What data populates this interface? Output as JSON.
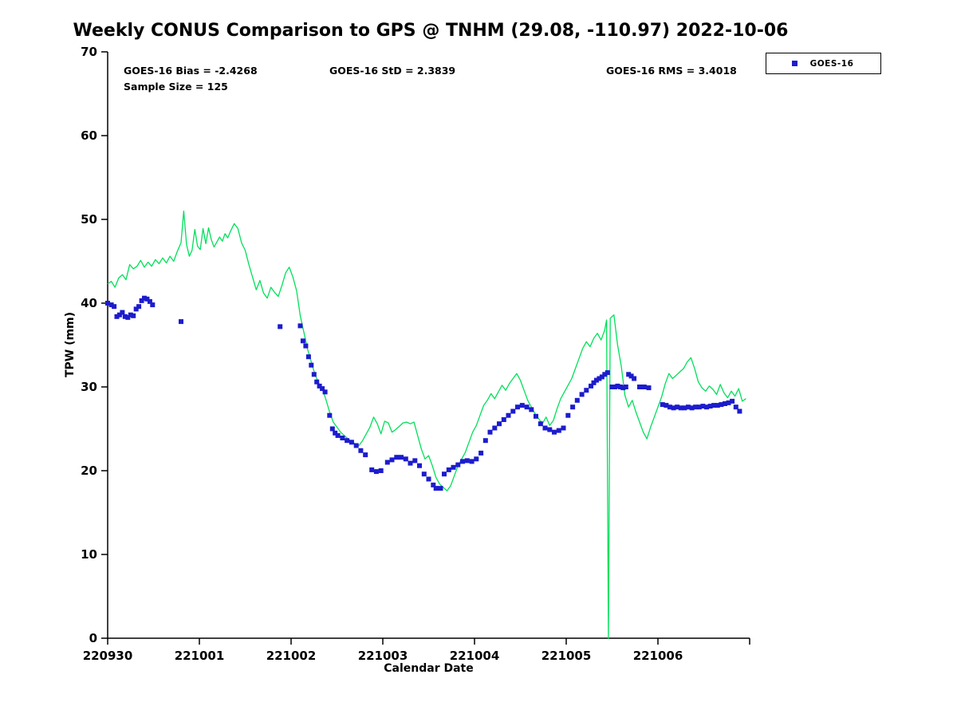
{
  "title": "Weekly CONUS Comparison to GPS @ TNHM (29.08, -110.97) 2022-10-06",
  "stats": {
    "bias": "GOES-16 Bias = -2.4268",
    "std": "GOES-16 StD = 2.3839",
    "rms": "GOES-16 RMS = 3.4018",
    "sample_size": "Sample Size = 125"
  },
  "legend": {
    "label": "GOES-16"
  },
  "axes": {
    "x_label": "Calendar Date",
    "y_label": "TPW (mm)"
  },
  "colors": {
    "gps_line": "#00e05a",
    "goes16_marker": "#1c1ccd",
    "axis": "#000000"
  },
  "chart_data": {
    "type": "line",
    "title": "Weekly CONUS Comparison to GPS @ TNHM (29.08, -110.97) 2022-10-06",
    "xlabel": "Calendar Date",
    "ylabel": "TPW (mm)",
    "ylim": [
      0,
      70
    ],
    "xlim_days": [
      0,
      7
    ],
    "grid": false,
    "legend_position": "outside-top-right",
    "x_unit": "days since 220930",
    "x_tick_labels": [
      "220930",
      "221001",
      "221002",
      "221003",
      "221004",
      "221005",
      "221006"
    ],
    "x_tick_days": [
      0,
      1,
      2,
      3,
      4,
      5,
      6
    ],
    "y_ticks": [
      0,
      10,
      20,
      30,
      40,
      50,
      60,
      70
    ],
    "series": [
      {
        "name": "GPS",
        "style": "line",
        "color": "#00e05a",
        "points": [
          [
            0.0,
            42.3
          ],
          [
            0.04,
            42.6
          ],
          [
            0.08,
            41.9
          ],
          [
            0.12,
            43.0
          ],
          [
            0.16,
            43.4
          ],
          [
            0.2,
            42.8
          ],
          [
            0.24,
            44.6
          ],
          [
            0.28,
            44.1
          ],
          [
            0.32,
            44.4
          ],
          [
            0.36,
            45.1
          ],
          [
            0.4,
            44.3
          ],
          [
            0.44,
            44.9
          ],
          [
            0.48,
            44.4
          ],
          [
            0.52,
            45.2
          ],
          [
            0.56,
            44.7
          ],
          [
            0.6,
            45.4
          ],
          [
            0.64,
            44.8
          ],
          [
            0.68,
            45.6
          ],
          [
            0.72,
            45.0
          ],
          [
            0.76,
            46.2
          ],
          [
            0.8,
            47.2
          ],
          [
            0.83,
            51.0
          ],
          [
            0.86,
            47.0
          ],
          [
            0.89,
            45.6
          ],
          [
            0.92,
            46.3
          ],
          [
            0.95,
            48.8
          ],
          [
            0.98,
            46.8
          ],
          [
            1.01,
            46.4
          ],
          [
            1.04,
            48.9
          ],
          [
            1.07,
            47.1
          ],
          [
            1.1,
            49.0
          ],
          [
            1.13,
            47.6
          ],
          [
            1.16,
            46.7
          ],
          [
            1.19,
            47.3
          ],
          [
            1.22,
            47.9
          ],
          [
            1.25,
            47.4
          ],
          [
            1.28,
            48.3
          ],
          [
            1.31,
            47.8
          ],
          [
            1.34,
            48.6
          ],
          [
            1.38,
            49.5
          ],
          [
            1.42,
            48.9
          ],
          [
            1.46,
            47.2
          ],
          [
            1.5,
            46.3
          ],
          [
            1.54,
            44.6
          ],
          [
            1.58,
            43.1
          ],
          [
            1.62,
            41.6
          ],
          [
            1.66,
            42.7
          ],
          [
            1.7,
            41.2
          ],
          [
            1.74,
            40.6
          ],
          [
            1.78,
            41.9
          ],
          [
            1.82,
            41.3
          ],
          [
            1.86,
            40.8
          ],
          [
            1.9,
            42.1
          ],
          [
            1.94,
            43.6
          ],
          [
            1.98,
            44.3
          ],
          [
            2.02,
            43.1
          ],
          [
            2.06,
            41.5
          ],
          [
            2.1,
            38.5
          ],
          [
            2.14,
            36.5
          ],
          [
            2.18,
            34.5
          ],
          [
            2.22,
            33.0
          ],
          [
            2.26,
            31.5
          ],
          [
            2.3,
            30.5
          ],
          [
            2.34,
            29.8
          ],
          [
            2.38,
            28.5
          ],
          [
            2.42,
            27.0
          ],
          [
            2.46,
            25.8
          ],
          [
            2.5,
            25.2
          ],
          [
            2.54,
            24.6
          ],
          [
            2.58,
            24.2
          ],
          [
            2.62,
            23.8
          ],
          [
            2.66,
            23.5
          ],
          [
            2.7,
            23.2
          ],
          [
            2.74,
            23.0
          ],
          [
            2.78,
            23.6
          ],
          [
            2.82,
            24.4
          ],
          [
            2.86,
            25.2
          ],
          [
            2.9,
            26.4
          ],
          [
            2.94,
            25.6
          ],
          [
            2.98,
            24.4
          ],
          [
            3.02,
            25.9
          ],
          [
            3.06,
            25.7
          ],
          [
            3.1,
            24.6
          ],
          [
            3.14,
            24.9
          ],
          [
            3.18,
            25.3
          ],
          [
            3.22,
            25.7
          ],
          [
            3.26,
            25.8
          ],
          [
            3.3,
            25.6
          ],
          [
            3.34,
            25.8
          ],
          [
            3.38,
            24.2
          ],
          [
            3.42,
            22.6
          ],
          [
            3.46,
            21.4
          ],
          [
            3.5,
            21.8
          ],
          [
            3.54,
            20.6
          ],
          [
            3.58,
            19.2
          ],
          [
            3.62,
            18.4
          ],
          [
            3.66,
            18.0
          ],
          [
            3.7,
            17.6
          ],
          [
            3.74,
            18.2
          ],
          [
            3.78,
            19.4
          ],
          [
            3.82,
            20.6
          ],
          [
            3.86,
            21.4
          ],
          [
            3.9,
            22.2
          ],
          [
            3.94,
            23.4
          ],
          [
            3.98,
            24.6
          ],
          [
            4.02,
            25.4
          ],
          [
            4.06,
            26.6
          ],
          [
            4.1,
            27.8
          ],
          [
            4.14,
            28.4
          ],
          [
            4.18,
            29.2
          ],
          [
            4.22,
            28.6
          ],
          [
            4.26,
            29.4
          ],
          [
            4.3,
            30.2
          ],
          [
            4.34,
            29.6
          ],
          [
            4.38,
            30.4
          ],
          [
            4.42,
            31.0
          ],
          [
            4.46,
            31.6
          ],
          [
            4.5,
            30.8
          ],
          [
            4.54,
            29.6
          ],
          [
            4.58,
            28.4
          ],
          [
            4.62,
            27.6
          ],
          [
            4.66,
            26.8
          ],
          [
            4.7,
            26.2
          ],
          [
            4.74,
            25.6
          ],
          [
            4.78,
            26.4
          ],
          [
            4.82,
            25.4
          ],
          [
            4.86,
            26.0
          ],
          [
            4.9,
            27.4
          ],
          [
            4.94,
            28.6
          ],
          [
            4.98,
            29.4
          ],
          [
            5.02,
            30.2
          ],
          [
            5.06,
            31.0
          ],
          [
            5.1,
            32.2
          ],
          [
            5.14,
            33.4
          ],
          [
            5.18,
            34.6
          ],
          [
            5.22,
            35.4
          ],
          [
            5.26,
            34.8
          ],
          [
            5.3,
            35.8
          ],
          [
            5.34,
            36.4
          ],
          [
            5.38,
            35.6
          ],
          [
            5.42,
            36.8
          ],
          [
            5.44,
            38.0
          ],
          [
            5.46,
            0.0
          ],
          [
            5.48,
            38.2
          ],
          [
            5.52,
            38.6
          ],
          [
            5.56,
            35.0
          ],
          [
            5.6,
            32.5
          ],
          [
            5.64,
            29.0
          ],
          [
            5.68,
            27.6
          ],
          [
            5.72,
            28.4
          ],
          [
            5.76,
            27.0
          ],
          [
            5.8,
            25.8
          ],
          [
            5.84,
            24.6
          ],
          [
            5.88,
            23.8
          ],
          [
            5.92,
            25.2
          ],
          [
            5.96,
            26.4
          ],
          [
            6.0,
            27.6
          ],
          [
            6.04,
            28.8
          ],
          [
            6.08,
            30.4
          ],
          [
            6.12,
            31.6
          ],
          [
            6.16,
            31.0
          ],
          [
            6.2,
            31.4
          ],
          [
            6.24,
            31.8
          ],
          [
            6.28,
            32.2
          ],
          [
            6.32,
            33.0
          ],
          [
            6.36,
            33.5
          ],
          [
            6.4,
            32.2
          ],
          [
            6.44,
            30.6
          ],
          [
            6.48,
            29.9
          ],
          [
            6.52,
            29.5
          ],
          [
            6.56,
            30.1
          ],
          [
            6.6,
            29.7
          ],
          [
            6.64,
            29.1
          ],
          [
            6.68,
            30.3
          ],
          [
            6.72,
            29.3
          ],
          [
            6.76,
            28.7
          ],
          [
            6.8,
            29.5
          ],
          [
            6.84,
            28.9
          ],
          [
            6.88,
            29.8
          ],
          [
            6.92,
            28.3
          ],
          [
            6.96,
            28.6
          ]
        ]
      },
      {
        "name": "GOES-16",
        "style": "scatter-square",
        "color": "#1c1ccd",
        "points": [
          [
            0.0,
            40.0
          ],
          [
            0.04,
            39.8
          ],
          [
            0.07,
            39.6
          ],
          [
            0.1,
            38.4
          ],
          [
            0.13,
            38.6
          ],
          [
            0.16,
            38.9
          ],
          [
            0.19,
            38.4
          ],
          [
            0.22,
            38.3
          ],
          [
            0.25,
            38.6
          ],
          [
            0.28,
            38.5
          ],
          [
            0.31,
            39.3
          ],
          [
            0.34,
            39.6
          ],
          [
            0.37,
            40.3
          ],
          [
            0.4,
            40.6
          ],
          [
            0.43,
            40.5
          ],
          [
            0.46,
            40.2
          ],
          [
            0.49,
            39.8
          ],
          [
            0.8,
            37.8
          ],
          [
            1.88,
            37.2
          ],
          [
            2.1,
            37.3
          ],
          [
            2.13,
            35.5
          ],
          [
            2.16,
            34.9
          ],
          [
            2.19,
            33.6
          ],
          [
            2.22,
            32.6
          ],
          [
            2.25,
            31.5
          ],
          [
            2.28,
            30.6
          ],
          [
            2.31,
            30.1
          ],
          [
            2.34,
            29.8
          ],
          [
            2.37,
            29.4
          ],
          [
            2.42,
            26.6
          ],
          [
            2.45,
            25.0
          ],
          [
            2.48,
            24.5
          ],
          [
            2.51,
            24.2
          ],
          [
            2.56,
            23.9
          ],
          [
            2.61,
            23.6
          ],
          [
            2.66,
            23.4
          ],
          [
            2.71,
            23.0
          ],
          [
            2.76,
            22.4
          ],
          [
            2.81,
            21.9
          ],
          [
            2.88,
            20.1
          ],
          [
            2.93,
            19.9
          ],
          [
            2.98,
            20.0
          ],
          [
            3.05,
            21.0
          ],
          [
            3.1,
            21.3
          ],
          [
            3.15,
            21.6
          ],
          [
            3.2,
            21.6
          ],
          [
            3.25,
            21.4
          ],
          [
            3.3,
            20.9
          ],
          [
            3.35,
            21.2
          ],
          [
            3.4,
            20.6
          ],
          [
            3.45,
            19.6
          ],
          [
            3.5,
            19.0
          ],
          [
            3.55,
            18.3
          ],
          [
            3.58,
            17.9
          ],
          [
            3.63,
            17.9
          ],
          [
            3.67,
            19.6
          ],
          [
            3.72,
            20.1
          ],
          [
            3.77,
            20.4
          ],
          [
            3.82,
            20.7
          ],
          [
            3.87,
            21.1
          ],
          [
            3.92,
            21.2
          ],
          [
            3.97,
            21.1
          ],
          [
            4.02,
            21.4
          ],
          [
            4.07,
            22.1
          ],
          [
            4.12,
            23.6
          ],
          [
            4.17,
            24.6
          ],
          [
            4.22,
            25.1
          ],
          [
            4.27,
            25.6
          ],
          [
            4.32,
            26.1
          ],
          [
            4.37,
            26.6
          ],
          [
            4.42,
            27.1
          ],
          [
            4.47,
            27.6
          ],
          [
            4.52,
            27.8
          ],
          [
            4.57,
            27.6
          ],
          [
            4.62,
            27.3
          ],
          [
            4.67,
            26.5
          ],
          [
            4.72,
            25.6
          ],
          [
            4.77,
            25.1
          ],
          [
            4.82,
            24.9
          ],
          [
            4.87,
            24.6
          ],
          [
            4.92,
            24.8
          ],
          [
            4.97,
            25.1
          ],
          [
            5.02,
            26.6
          ],
          [
            5.07,
            27.6
          ],
          [
            5.12,
            28.4
          ],
          [
            5.17,
            29.1
          ],
          [
            5.22,
            29.6
          ],
          [
            5.27,
            30.1
          ],
          [
            5.3,
            30.5
          ],
          [
            5.33,
            30.8
          ],
          [
            5.36,
            31.0
          ],
          [
            5.39,
            31.2
          ],
          [
            5.42,
            31.5
          ],
          [
            5.45,
            31.7
          ],
          [
            5.5,
            30.0
          ],
          [
            5.53,
            30.0
          ],
          [
            5.56,
            30.1
          ],
          [
            5.59,
            30.0
          ],
          [
            5.62,
            29.9
          ],
          [
            5.65,
            30.0
          ],
          [
            5.68,
            31.5
          ],
          [
            5.71,
            31.3
          ],
          [
            5.74,
            31.0
          ],
          [
            5.8,
            30.0
          ],
          [
            5.85,
            30.0
          ],
          [
            5.9,
            29.9
          ],
          [
            6.05,
            27.9
          ],
          [
            6.09,
            27.8
          ],
          [
            6.13,
            27.6
          ],
          [
            6.17,
            27.5
          ],
          [
            6.21,
            27.6
          ],
          [
            6.25,
            27.5
          ],
          [
            6.29,
            27.5
          ],
          [
            6.33,
            27.6
          ],
          [
            6.37,
            27.5
          ],
          [
            6.41,
            27.6
          ],
          [
            6.45,
            27.6
          ],
          [
            6.49,
            27.7
          ],
          [
            6.53,
            27.6
          ],
          [
            6.57,
            27.7
          ],
          [
            6.61,
            27.8
          ],
          [
            6.65,
            27.8
          ],
          [
            6.69,
            27.9
          ],
          [
            6.73,
            28.0
          ],
          [
            6.77,
            28.1
          ],
          [
            6.81,
            28.3
          ],
          [
            6.85,
            27.6
          ],
          [
            6.89,
            27.1
          ]
        ]
      }
    ]
  }
}
